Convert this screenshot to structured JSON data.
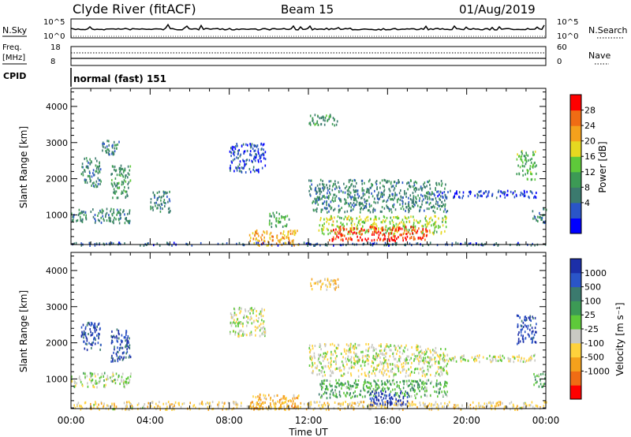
{
  "header": {
    "station": "Clyde River (fitACF)",
    "beam": "Beam 15",
    "date": "01/Aug/2019"
  },
  "top_panels": {
    "nsky_label": "N.Sky",
    "nsky_ticks": [
      "10^5",
      "10^0"
    ],
    "nsearch_label": "N.Search",
    "nsearch_ticks": [
      "10^5",
      "10^0"
    ],
    "freq_label": "Freq.",
    "freq_unit": "[MHz]",
    "freq_ticks": [
      "18",
      "8"
    ],
    "nave_label": "Nave",
    "nave_ticks": [
      "60",
      "0"
    ],
    "cpid_label": "CPID",
    "cpid_value": "normal (fast) 151"
  },
  "x_axis": {
    "title": "Time UT",
    "ticks": [
      "00:00",
      "04:00",
      "08:00",
      "12:00",
      "16:00",
      "20:00",
      "00:00"
    ],
    "range_hours": [
      0,
      24
    ]
  },
  "chart_data": [
    {
      "type": "heatmap",
      "name": "power",
      "ylabel": "Slant Range [km]",
      "ylim": [
        180,
        4500
      ],
      "yticks": [
        1000,
        2000,
        3000,
        4000
      ],
      "colorbar": {
        "label": "Power [dB]",
        "range": [
          0,
          32
        ],
        "ticks": [
          "28",
          "24",
          "20",
          "16",
          "12",
          "8",
          "4"
        ],
        "colors": [
          "#0000ff",
          "#2a55c8",
          "#3b7a6e",
          "#3c9a55",
          "#5ec93a",
          "#e6d820",
          "#f5a11c",
          "#f06c14",
          "#ff0000"
        ]
      },
      "regions": [
        {
          "t": [
            0.0,
            24.0
          ],
          "r": [
            180,
            260
          ],
          "level": 0.2
        },
        {
          "t": [
            0.0,
            3.0
          ],
          "r": [
            800,
            1200
          ],
          "level": 0.3
        },
        {
          "t": [
            0.5,
            1.5
          ],
          "r": [
            1800,
            2600
          ],
          "level": 0.3
        },
        {
          "t": [
            2.0,
            3.0
          ],
          "r": [
            1500,
            2400
          ],
          "level": 0.35
        },
        {
          "t": [
            1.5,
            2.5
          ],
          "r": [
            2700,
            3100
          ],
          "level": 0.3
        },
        {
          "t": [
            4.0,
            5.0
          ],
          "r": [
            1100,
            1700
          ],
          "level": 0.3
        },
        {
          "t": [
            8.0,
            9.8
          ],
          "r": [
            2200,
            3000
          ],
          "level": 0.15
        },
        {
          "t": [
            9.0,
            11.5
          ],
          "r": [
            180,
            600
          ],
          "level": 0.7
        },
        {
          "t": [
            10.0,
            11.0
          ],
          "r": [
            700,
            1100
          ],
          "level": 0.4
        },
        {
          "t": [
            12.0,
            13.5
          ],
          "r": [
            3500,
            3800
          ],
          "level": 0.35
        },
        {
          "t": [
            12.0,
            19.0
          ],
          "r": [
            1100,
            2000
          ],
          "level": 0.3
        },
        {
          "t": [
            12.5,
            19.0
          ],
          "r": [
            500,
            1000
          ],
          "level": 0.55
        },
        {
          "t": [
            13.0,
            18.0
          ],
          "r": [
            300,
            700
          ],
          "level": 0.9
        },
        {
          "t": [
            18.5,
            23.5
          ],
          "r": [
            1500,
            1700
          ],
          "level": 0.15
        },
        {
          "t": [
            22.5,
            23.5
          ],
          "r": [
            2000,
            2800
          ],
          "level": 0.45
        },
        {
          "t": [
            23.3,
            24.0
          ],
          "r": [
            800,
            1200
          ],
          "level": 0.3
        }
      ]
    },
    {
      "type": "heatmap",
      "name": "velocity",
      "ylabel": "Slant Range [km]",
      "ylim": [
        180,
        4500
      ],
      "yticks": [
        1000,
        2000,
        3000,
        4000
      ],
      "colorbar": {
        "label": "Velocity [m s⁻¹]",
        "ticks": [
          "1000",
          "500",
          "100",
          "25",
          "-25",
          "-100",
          "-500",
          "-1000"
        ],
        "colors": [
          "#ff0000",
          "#f06c14",
          "#f5a11c",
          "#ffd23c",
          "#c9c9c3",
          "#5ec93a",
          "#3c9a55",
          "#3b7a6e",
          "#2a55c8",
          "#1c2fa8"
        ]
      },
      "regions": [
        {
          "t": [
            0.0,
            24.0
          ],
          "r": [
            180,
            400
          ],
          "level": 0.38
        },
        {
          "t": [
            0.0,
            3.0
          ],
          "r": [
            800,
            1200
          ],
          "level": 0.5
        },
        {
          "t": [
            0.5,
            1.5
          ],
          "r": [
            1800,
            2600
          ],
          "level": 0.9
        },
        {
          "t": [
            2.0,
            3.0
          ],
          "r": [
            1500,
            2400
          ],
          "level": 0.85
        },
        {
          "t": [
            8.0,
            9.8
          ],
          "r": [
            2200,
            3000
          ],
          "level": 0.45
        },
        {
          "t": [
            9.0,
            11.5
          ],
          "r": [
            180,
            600
          ],
          "level": 0.3
        },
        {
          "t": [
            12.0,
            13.5
          ],
          "r": [
            3500,
            3800
          ],
          "level": 0.35
        },
        {
          "t": [
            12.0,
            19.0
          ],
          "r": [
            1100,
            2000
          ],
          "level": 0.45
        },
        {
          "t": [
            12.5,
            19.0
          ],
          "r": [
            500,
            1000
          ],
          "level": 0.6
        },
        {
          "t": [
            15.0,
            17.0
          ],
          "r": [
            300,
            700
          ],
          "level": 0.95
        },
        {
          "t": [
            18.5,
            23.5
          ],
          "r": [
            1500,
            1700
          ],
          "level": 0.45
        },
        {
          "t": [
            22.5,
            23.5
          ],
          "r": [
            2000,
            2800
          ],
          "level": 0.9
        },
        {
          "t": [
            23.3,
            24.0
          ],
          "r": [
            800,
            1200
          ],
          "level": 0.6
        }
      ]
    }
  ]
}
